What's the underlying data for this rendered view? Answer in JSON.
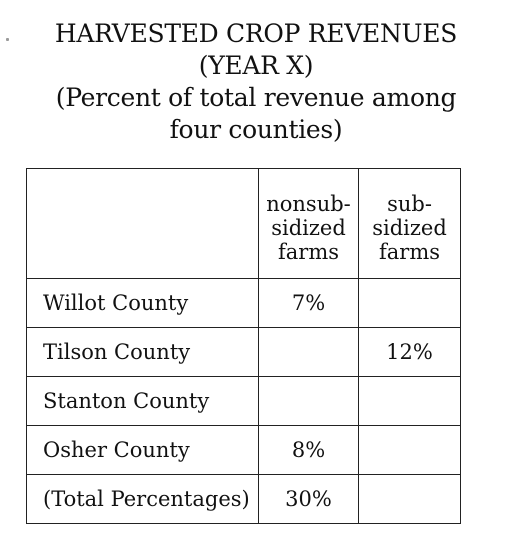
{
  "title": {
    "line1": "HARVESTED CROP REVENUES",
    "line2": "(YEAR X)",
    "line3": "(Percent of total revenue among",
    "line4": "four counties)"
  },
  "table": {
    "headers": {
      "nonsubsidized": [
        "nonsub-",
        "sidized",
        "farms"
      ],
      "subsidized": [
        "sub-",
        "sidized",
        "farms"
      ]
    },
    "rows": [
      {
        "label": "Willot County",
        "nonsubsidized": "7%",
        "subsidized": ""
      },
      {
        "label": "Tilson County",
        "nonsubsidized": "",
        "subsidized": "12%"
      },
      {
        "label": "Stanton County",
        "nonsubsidized": "",
        "subsidized": ""
      },
      {
        "label": "Osher County",
        "nonsubsidized": "8%",
        "subsidized": ""
      },
      {
        "label": "(Total Percentages)",
        "nonsubsidized": "30%",
        "subsidized": ""
      }
    ]
  }
}
